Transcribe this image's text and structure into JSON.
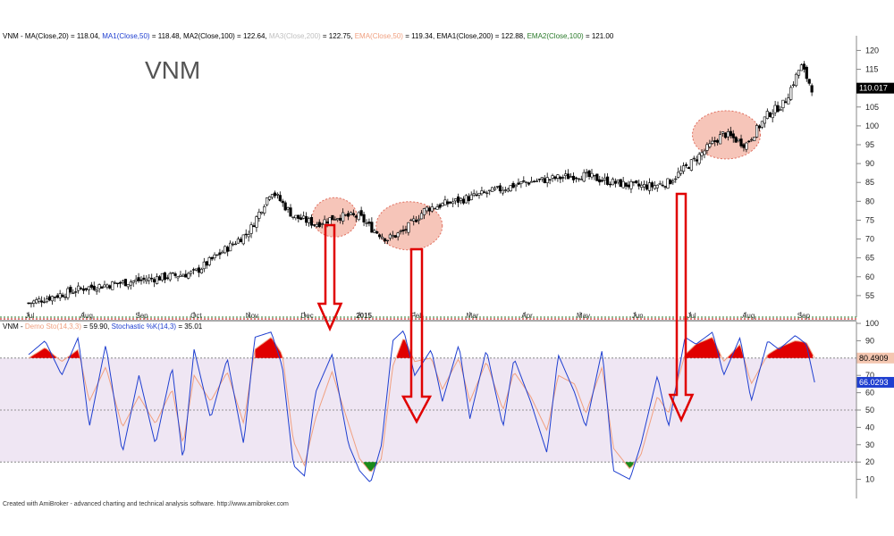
{
  "header": {
    "price_items": [
      {
        "text": "VNM - ",
        "color": "#000000"
      },
      {
        "text": "MA(Close,20) = 118.04,",
        "color": "#000000"
      },
      {
        "text": " MA1(Close,50)",
        "color": "#1f3fd0"
      },
      {
        "text": " = 118.48,",
        "color": "#000000"
      },
      {
        "text": " MA2(Close,100) = 122.64,",
        "color": "#000000"
      },
      {
        "text": " MA3(Close,200)",
        "color": "#c0c0c0"
      },
      {
        "text": " = 122.75,",
        "color": "#000000"
      },
      {
        "text": " EMA(Close,50)",
        "color": "#f0a080"
      },
      {
        "text": " = 119.34,",
        "color": "#000000"
      },
      {
        "text": " EMA1(Close,200) = 122.88,",
        "color": "#000000"
      },
      {
        "text": " EMA2(Close,100)",
        "color": "#2a7a2a"
      },
      {
        "text": " = 121.00",
        "color": "#000000"
      }
    ],
    "stoch_items": [
      {
        "text": "VNM - ",
        "color": "#000000"
      },
      {
        "text": "Demo Sto(14,3,3)",
        "color": "#f0a080"
      },
      {
        "text": " = 59.90,",
        "color": "#000000"
      },
      {
        "text": " Stochastic %K(14,3)",
        "color": "#1f3fd0"
      },
      {
        "text": " = 35.01",
        "color": "#000000"
      }
    ]
  },
  "ticker": "VNM",
  "credit": "Created with AmiBroker - advanced charting and technical analysis software. http://www.amibroker.com",
  "colors": {
    "band_fill": "#efe6f3",
    "up_candle": "#ffffff",
    "down_candle": "#000000",
    "k_line": "#1f3fd0",
    "d_line": "#f0a080",
    "overbought_fill": "#e00000",
    "oversold_fill": "#1a8a1a",
    "ellipse_fill": "#f4b6a8",
    "ellipse_stroke": "#e07060",
    "arrow": "#e00000"
  },
  "chart_data": [
    {
      "type": "candlestick",
      "title": "VNM",
      "ylim": [
        50,
        122
      ],
      "y_ticks": [
        55,
        60,
        65,
        70,
        75,
        80,
        85,
        90,
        95,
        100,
        105,
        110,
        115,
        120
      ],
      "x_labels": [
        "Jul",
        "Aug",
        "Sep",
        "Oct",
        "Nov",
        "Dec",
        "2015",
        "Feb",
        "Mar",
        "Apr",
        "May",
        "Jun",
        "Jul",
        "Aug",
        "Sep"
      ],
      "last_value_tag": "110.017",
      "close_path": {
        "x_month_pos": [
          0,
          1,
          2,
          3,
          4,
          4.4,
          4.8,
          5.2,
          5.6,
          6,
          6.2,
          6.5,
          6.8,
          7.2,
          8,
          9,
          10,
          10.6,
          11,
          11.3,
          11.6,
          12,
          12.6,
          13,
          13.4,
          13.7,
          14,
          14.2
        ],
        "close": [
          53,
          57,
          59,
          61,
          72,
          83,
          76,
          74,
          76,
          76,
          73,
          70,
          72,
          78,
          81,
          85,
          87,
          85,
          84,
          84,
          85,
          90,
          98,
          95,
          103,
          106,
          116,
          110
        ]
      },
      "highlight_ellipses_month_pos": [
        5.55,
        6.9,
        12.65
      ]
    },
    {
      "type": "line",
      "title": "Stochastic",
      "ylim": [
        0,
        100
      ],
      "y_ticks": [
        10,
        20,
        30,
        40,
        50,
        60,
        70,
        80,
        90,
        100
      ],
      "levels": [
        20,
        50,
        80
      ],
      "series": [
        {
          "name": "Demo Sto(14,3,3)",
          "last_value": "80.4909"
        },
        {
          "name": "Stochastic %K(14,3)",
          "last_value": "66.0293"
        }
      ],
      "k_path": {
        "x_month_pos": [
          0,
          0.3,
          0.6,
          0.9,
          1.1,
          1.4,
          1.7,
          2.0,
          2.3,
          2.6,
          2.8,
          3.0,
          3.3,
          3.6,
          3.9,
          4.1,
          4.4,
          4.6,
          4.8,
          5.0,
          5.2,
          5.5,
          5.8,
          6.0,
          6.2,
          6.4,
          6.6,
          6.8,
          7.0,
          7.3,
          7.5,
          7.8,
          8.0,
          8.3,
          8.6,
          8.8,
          9.1,
          9.4,
          9.6,
          9.9,
          10.1,
          10.4,
          10.6,
          10.9,
          11.1,
          11.4,
          11.6,
          11.9,
          12.1,
          12.4,
          12.6,
          12.9,
          13.1,
          13.4,
          13.6,
          13.9,
          14.1,
          14.25
        ],
        "values": [
          82,
          90,
          70,
          92,
          40,
          88,
          25,
          70,
          30,
          75,
          20,
          85,
          45,
          80,
          30,
          92,
          95,
          75,
          18,
          12,
          60,
          82,
          30,
          15,
          8,
          30,
          90,
          96,
          70,
          85,
          55,
          88,
          45,
          85,
          40,
          80,
          55,
          25,
          82,
          60,
          40,
          85,
          15,
          10,
          30,
          70,
          40,
          92,
          88,
          95,
          70,
          92,
          55,
          90,
          85,
          93,
          88,
          66
        ]
      },
      "d_path": {
        "x_month_pos": [
          0,
          0.3,
          0.6,
          0.9,
          1.1,
          1.4,
          1.7,
          2.0,
          2.3,
          2.6,
          2.8,
          3.0,
          3.3,
          3.6,
          3.9,
          4.1,
          4.4,
          4.6,
          4.8,
          5.0,
          5.2,
          5.5,
          5.8,
          6.0,
          6.2,
          6.4,
          6.6,
          6.8,
          7.0,
          7.3,
          7.5,
          7.8,
          8.0,
          8.3,
          8.6,
          8.8,
          9.1,
          9.4,
          9.6,
          9.9,
          10.1,
          10.4,
          10.6,
          10.9,
          11.1,
          11.4,
          11.6,
          11.9,
          12.1,
          12.4,
          12.6,
          12.9,
          13.1,
          13.4,
          13.6,
          13.9,
          14.1,
          14.25
        ],
        "values": [
          80,
          86,
          78,
          85,
          55,
          75,
          40,
          58,
          42,
          62,
          30,
          70,
          55,
          72,
          42,
          85,
          92,
          82,
          32,
          18,
          45,
          72,
          42,
          22,
          14,
          22,
          75,
          92,
          78,
          80,
          62,
          80,
          55,
          78,
          50,
          72,
          58,
          38,
          70,
          65,
          48,
          75,
          28,
          16,
          24,
          58,
          48,
          82,
          88,
          92,
          78,
          88,
          65,
          82,
          86,
          90,
          89,
          80
        ]
      }
    }
  ]
}
